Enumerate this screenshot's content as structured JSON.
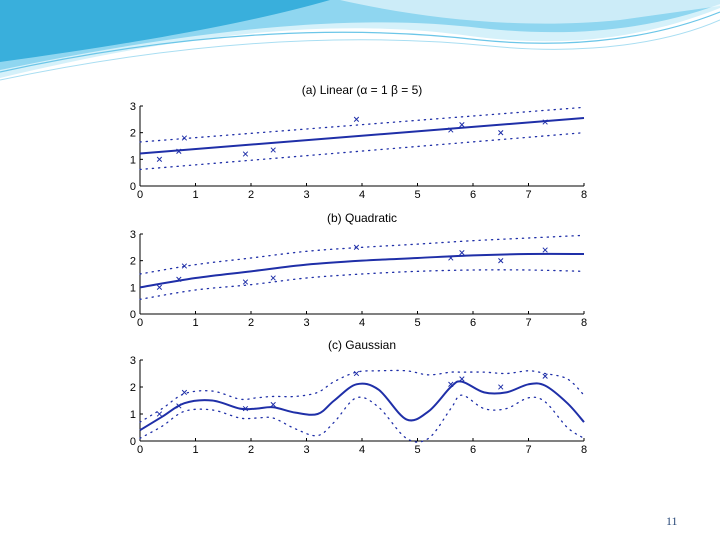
{
  "page": {
    "number": "11"
  },
  "colors": {
    "curve": "#1f2fa8",
    "wave_light": "#bfe9f7",
    "wave_mid": "#7fd0ee",
    "wave_dark": "#2aa6d8",
    "axis": "#000000",
    "page_number": "#2a4a7a"
  },
  "chart_data": [
    {
      "type": "line",
      "title": "(a) Linear (α = 1 β = 5)",
      "xlim": [
        0,
        8
      ],
      "ylim": [
        0,
        3
      ],
      "xticks": [
        0,
        1,
        2,
        3,
        4,
        5,
        6,
        7,
        8
      ],
      "yticks": [
        0,
        1,
        2,
        3
      ],
      "grid": false,
      "mean": {
        "x": [
          0,
          8
        ],
        "y": [
          1.22,
          2.55
        ]
      },
      "band": {
        "x": [
          0,
          8
        ],
        "upper": [
          1.65,
          2.95
        ],
        "lower": [
          0.62,
          2.0
        ]
      },
      "observations": {
        "x": [
          0.35,
          0.7,
          0.8,
          1.9,
          2.4,
          3.9,
          5.6,
          5.8,
          6.5,
          7.3
        ],
        "y": [
          1.0,
          1.3,
          1.8,
          1.2,
          1.35,
          2.5,
          2.1,
          2.3,
          2.0,
          2.4
        ]
      }
    },
    {
      "type": "line",
      "title": "(b) Quadratic",
      "xlim": [
        0,
        8
      ],
      "ylim": [
        0,
        3
      ],
      "xticks": [
        0,
        1,
        2,
        3,
        4,
        5,
        6,
        7,
        8
      ],
      "yticks": [
        0,
        1,
        2,
        3
      ],
      "grid": false,
      "mean": {
        "x": [
          0,
          1,
          2,
          3,
          4,
          5,
          6,
          7,
          8
        ],
        "y": [
          1.0,
          1.35,
          1.6,
          1.85,
          2.0,
          2.1,
          2.2,
          2.25,
          2.25
        ]
      },
      "band": {
        "x": [
          0,
          1,
          2,
          3,
          4,
          5,
          6,
          7,
          8
        ],
        "upper": [
          1.5,
          1.85,
          2.1,
          2.35,
          2.5,
          2.62,
          2.75,
          2.85,
          2.95
        ],
        "lower": [
          0.55,
          0.9,
          1.1,
          1.35,
          1.5,
          1.6,
          1.65,
          1.65,
          1.6
        ]
      },
      "observations": {
        "x": [
          0.35,
          0.7,
          0.8,
          1.9,
          2.4,
          3.9,
          5.6,
          5.8,
          6.5,
          7.3
        ],
        "y": [
          1.0,
          1.3,
          1.8,
          1.2,
          1.35,
          2.5,
          2.1,
          2.3,
          2.0,
          2.4
        ]
      }
    },
    {
      "type": "line",
      "title": "(c) Gaussian",
      "xlim": [
        0,
        8
      ],
      "ylim": [
        0,
        3
      ],
      "xticks": [
        0,
        1,
        2,
        3,
        4,
        5,
        6,
        7,
        8
      ],
      "yticks": [
        0,
        1,
        2,
        3
      ],
      "grid": false,
      "mean": {
        "x": [
          0,
          0.4,
          0.8,
          1.3,
          1.8,
          2.1,
          2.4,
          2.8,
          3.2,
          3.5,
          3.9,
          4.3,
          4.8,
          5.2,
          5.6,
          5.8,
          6.2,
          6.6,
          7.0,
          7.3,
          7.7,
          8.0
        ],
        "y": [
          0.4,
          0.9,
          1.4,
          1.5,
          1.2,
          1.2,
          1.25,
          1.05,
          1.0,
          1.5,
          2.1,
          1.9,
          0.8,
          1.1,
          2.0,
          2.2,
          1.8,
          1.8,
          2.1,
          2.05,
          1.4,
          0.7
        ]
      },
      "band": {
        "x": [
          0,
          0.4,
          0.8,
          1.3,
          1.8,
          2.1,
          2.4,
          2.8,
          3.2,
          3.5,
          3.9,
          4.3,
          4.8,
          5.2,
          5.6,
          5.8,
          6.2,
          6.6,
          7.0,
          7.3,
          7.7,
          8.0
        ],
        "upper": [
          0.7,
          1.2,
          1.75,
          1.85,
          1.55,
          1.6,
          1.65,
          1.65,
          1.8,
          2.2,
          2.55,
          2.6,
          2.6,
          2.45,
          2.55,
          2.55,
          2.55,
          2.5,
          2.6,
          2.5,
          2.3,
          1.7
        ],
        "lower": [
          0.1,
          0.55,
          1.1,
          1.15,
          0.85,
          0.85,
          0.85,
          0.45,
          0.2,
          0.7,
          1.6,
          1.25,
          0.1,
          0.1,
          1.2,
          1.7,
          1.2,
          1.2,
          1.6,
          1.45,
          0.5,
          0.1
        ]
      },
      "observations": {
        "x": [
          0.35,
          0.7,
          0.8,
          1.9,
          2.4,
          3.9,
          5.6,
          5.8,
          6.5,
          7.3
        ],
        "y": [
          1.0,
          1.3,
          1.8,
          1.2,
          1.35,
          2.5,
          2.1,
          2.3,
          2.0,
          2.4
        ]
      }
    }
  ]
}
